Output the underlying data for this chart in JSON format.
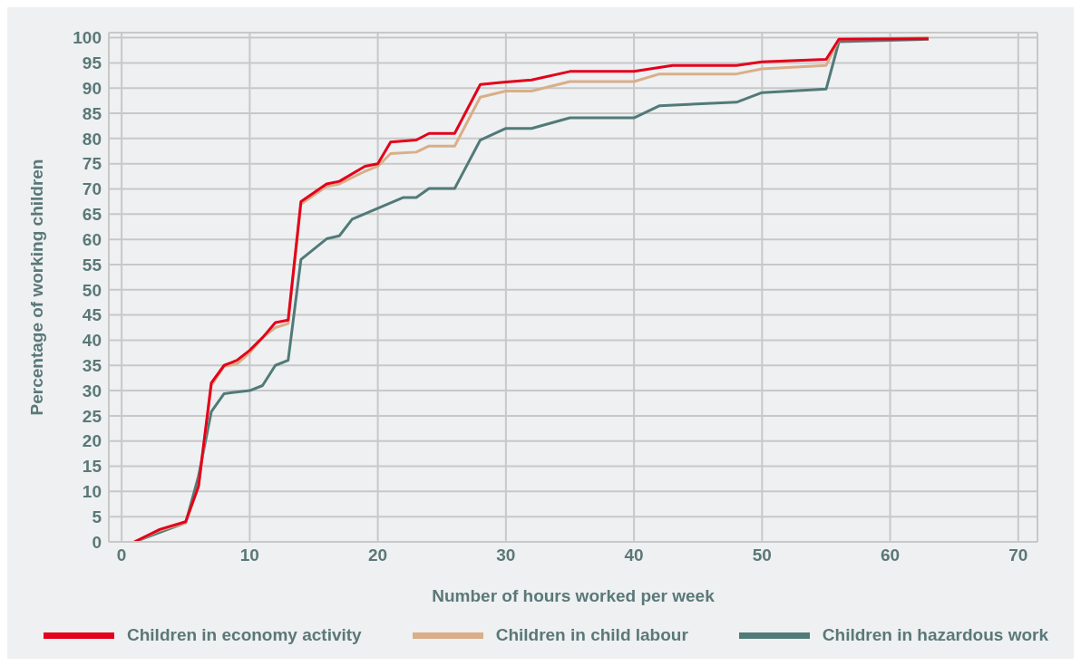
{
  "chart_data": {
    "type": "line",
    "xlabel": "Number of hours worked per week",
    "ylabel": "Percentage of working children",
    "xlim": [
      -1,
      71.5
    ],
    "xticks": [
      0,
      10,
      20,
      30,
      40,
      50,
      60,
      70
    ],
    "ylim": [
      0,
      101
    ],
    "yticks": [
      0,
      5,
      10,
      15,
      20,
      25,
      30,
      35,
      40,
      45,
      50,
      55,
      60,
      65,
      70,
      75,
      80,
      85,
      90,
      95,
      100
    ],
    "grid": true,
    "legend": "bottom",
    "marker": "none",
    "line_style": "solid",
    "series": [
      {
        "name": "Children in economy activity",
        "color": "#e3001b",
        "x": [
          1,
          3,
          5,
          6,
          7,
          8,
          9,
          10,
          11,
          12,
          13,
          14,
          16,
          17,
          19,
          20,
          21,
          23,
          24,
          26,
          28,
          30,
          32,
          35,
          40,
          43,
          48,
          50,
          55,
          56,
          63
        ],
        "values": [
          0,
          2.5,
          4,
          11,
          31.5,
          35,
          36,
          38,
          40.5,
          43.5,
          44,
          67.5,
          71,
          71.5,
          74.5,
          75,
          79.3,
          79.7,
          81,
          81,
          90.7,
          91.2,
          91.6,
          93.3,
          93.3,
          94.5,
          94.5,
          95.2,
          95.7,
          99.7,
          99.8
        ]
      },
      {
        "name": "Children in child labour",
        "color": "#d9ae88",
        "x": [
          1,
          3,
          5,
          6,
          7,
          8,
          9,
          10,
          11,
          12,
          13,
          14,
          16,
          17,
          19,
          20,
          21,
          23,
          24,
          26,
          28,
          30,
          32,
          35,
          40,
          42,
          48,
          50,
          55,
          56,
          63
        ],
        "values": [
          0,
          2.3,
          3.8,
          11,
          31,
          34.8,
          35.3,
          37.5,
          40.5,
          42.5,
          43.3,
          67,
          70.5,
          71,
          73.5,
          74.5,
          77,
          77.3,
          78.5,
          78.5,
          88.2,
          89.4,
          89.4,
          91.3,
          91.3,
          92.8,
          92.8,
          93.8,
          94.5,
          99.7,
          100
        ]
      },
      {
        "name": "Children in hazardous work",
        "color": "#517a78",
        "x": [
          1,
          5,
          6,
          7,
          8,
          10,
          11,
          12,
          13,
          14,
          16,
          17,
          18,
          22,
          23,
          24,
          26,
          28,
          30,
          32,
          35,
          40,
          42,
          48,
          50,
          55,
          56,
          63
        ],
        "values": [
          0,
          3.8,
          13,
          25.8,
          29.4,
          30,
          31,
          35,
          36,
          56,
          60.1,
          60.7,
          64,
          68.3,
          68.3,
          70.1,
          70.1,
          79.7,
          82,
          82,
          84.1,
          84.1,
          86.5,
          87.2,
          89.1,
          89.8,
          99.2,
          99.7
        ]
      }
    ]
  }
}
